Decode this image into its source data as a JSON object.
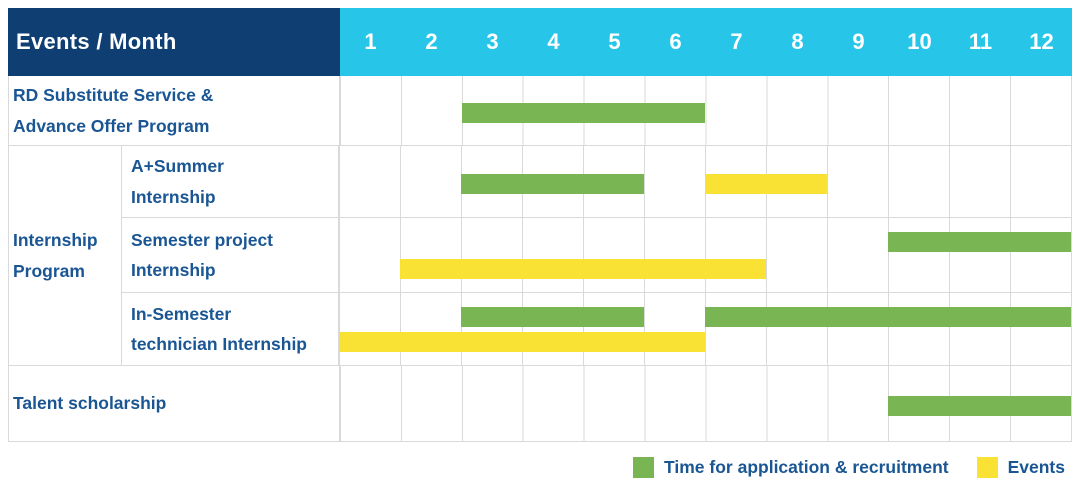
{
  "title_cell": "Events / Month",
  "months": [
    "1",
    "2",
    "3",
    "4",
    "5",
    "6",
    "7",
    "8",
    "9",
    "10",
    "11",
    "12"
  ],
  "group_label": "Internship\nProgram",
  "rows": [
    {
      "label": "RD Substitute Service &\nAdvance Offer Program",
      "bars": [
        {
          "kind": "application",
          "start": 3,
          "end": 6
        }
      ]
    },
    {
      "label": "A+Summer\nInternship",
      "bars": [
        {
          "kind": "application",
          "start": 3,
          "end": 5
        },
        {
          "kind": "event",
          "start": 7,
          "end": 8
        }
      ]
    },
    {
      "label": "Semester project\nInternship",
      "bars": [
        {
          "kind": "application",
          "start": 10,
          "end": 12
        },
        {
          "kind": "event",
          "start": 2,
          "end": 7
        }
      ]
    },
    {
      "label": "In-Semester\ntechnician Internship",
      "bars": [
        {
          "kind": "application",
          "start": 3,
          "end": 5
        },
        {
          "kind": "application",
          "start": 7,
          "end": 12
        },
        {
          "kind": "event",
          "start": 1,
          "end": 6
        }
      ]
    },
    {
      "label": "Talent scholarship",
      "bars": [
        {
          "kind": "application",
          "start": 10,
          "end": 12
        }
      ]
    }
  ],
  "legend": [
    {
      "kind": "application",
      "label": "Time for application & recruitment"
    },
    {
      "kind": "event",
      "label": "Events"
    }
  ],
  "colors": {
    "application": "#7ab553",
    "event": "#f9e233",
    "header_bg": "#0e3e72",
    "month_bg": "#27c6e8",
    "label_text": "#1a5693",
    "grid": "#d9d9d9"
  },
  "chart_data": {
    "type": "gantt",
    "title": "Events / Month",
    "x_axis": {
      "label": "Month",
      "ticks": [
        1,
        2,
        3,
        4,
        5,
        6,
        7,
        8,
        9,
        10,
        11,
        12
      ],
      "range": [
        1,
        12
      ]
    },
    "grid": true,
    "legend_position": "bottom-right",
    "legend": [
      {
        "name": "Time for application & recruitment",
        "color": "#7ab553"
      },
      {
        "name": "Events",
        "color": "#f9e233"
      }
    ],
    "tasks": [
      {
        "group": null,
        "name": "RD Substitute Service & Advance Offer Program",
        "bars": [
          {
            "series": "Time for application & recruitment",
            "start_month": 3,
            "end_month": 6
          }
        ]
      },
      {
        "group": "Internship Program",
        "name": "A+Summer Internship",
        "bars": [
          {
            "series": "Time for application & recruitment",
            "start_month": 3,
            "end_month": 5
          },
          {
            "series": "Events",
            "start_month": 7,
            "end_month": 8
          }
        ]
      },
      {
        "group": "Internship Program",
        "name": "Semester project Internship",
        "bars": [
          {
            "series": "Time for application & recruitment",
            "start_month": 10,
            "end_month": 12
          },
          {
            "series": "Events",
            "start_month": 2,
            "end_month": 7
          }
        ]
      },
      {
        "group": "Internship Program",
        "name": "In-Semester technician Internship",
        "bars": [
          {
            "series": "Time for application & recruitment",
            "start_month": 3,
            "end_month": 5
          },
          {
            "series": "Time for application & recruitment",
            "start_month": 7,
            "end_month": 12
          },
          {
            "series": "Events",
            "start_month": 1,
            "end_month": 6
          }
        ]
      },
      {
        "group": null,
        "name": "Talent scholarship",
        "bars": [
          {
            "series": "Time for application & recruitment",
            "start_month": 10,
            "end_month": 12
          }
        ]
      }
    ]
  }
}
